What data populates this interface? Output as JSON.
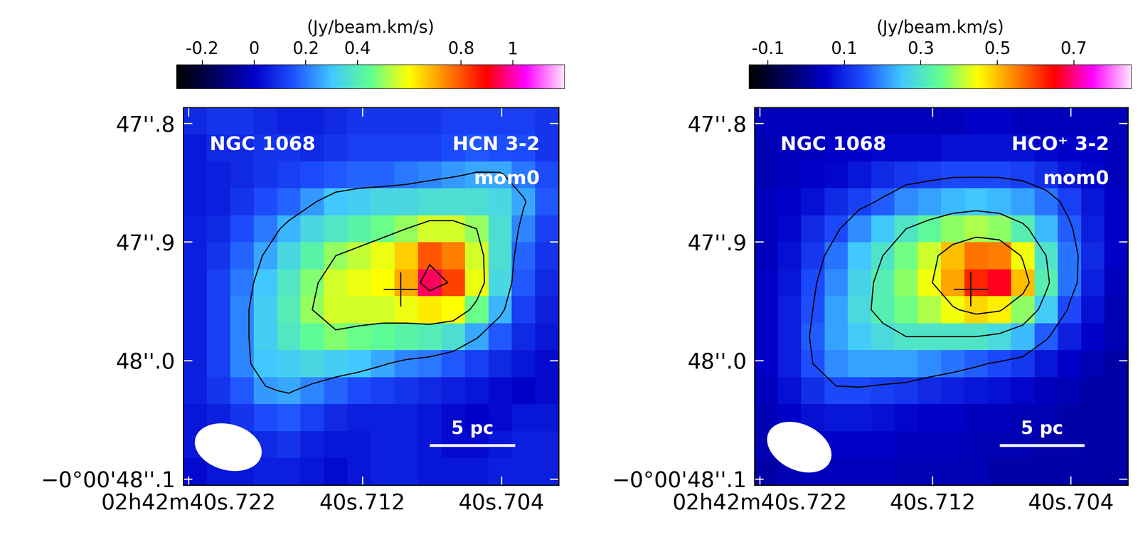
{
  "chart_data": [
    {
      "type": "heatmap",
      "object": "NGC 1068",
      "line": "HCN 3-2",
      "moment": "mom0",
      "scale_bar_label": "5 pc",
      "xlim": [
        40.7223,
        40.7007
      ],
      "ylim": [
        -48.105,
        -47.7865
      ],
      "xticks": [
        {
          "value": 40.722,
          "label": "02h42m40s.722"
        },
        {
          "value": 40.712,
          "label": "40s.712"
        },
        {
          "value": 40.704,
          "label": "40s.704"
        }
      ],
      "yticks": [
        {
          "value": -47.8,
          "label": "47''.8"
        },
        {
          "value": -47.9,
          "label": "47''.9"
        },
        {
          "value": -48.0,
          "label": "48''.0"
        },
        {
          "value": -48.1,
          "label": "−0°00'48''.1"
        }
      ],
      "colorbar": {
        "label": "(Jy/beam.km/s)",
        "range": [
          -0.3,
          1.2
        ],
        "ticks": [
          -0.2,
          0,
          0.2,
          0.4,
          0.8,
          1
        ]
      },
      "contour_levels": [
        0.25,
        0.5,
        0.85
      ],
      "agn_position": [
        40.7098,
        -47.94
      ],
      "cells": [
        [
          0.08,
          0.1,
          0.1,
          0.08,
          0.06,
          0.06,
          0.08,
          0.1,
          0.1,
          0.1,
          0.1,
          0.12,
          0.12,
          0.12,
          0.12,
          0.1
        ],
        [
          0.05,
          0.08,
          0.08,
          0.1,
          0.1,
          0.08,
          0.1,
          0.12,
          0.12,
          0.12,
          0.12,
          0.14,
          0.16,
          0.15,
          0.14,
          0.1
        ],
        [
          0.05,
          0.06,
          0.08,
          0.1,
          0.12,
          0.14,
          0.16,
          0.18,
          0.18,
          0.2,
          0.22,
          0.24,
          0.26,
          0.26,
          0.2,
          0.14
        ],
        [
          0.05,
          0.06,
          0.1,
          0.14,
          0.18,
          0.24,
          0.3,
          0.32,
          0.34,
          0.34,
          0.36,
          0.36,
          0.36,
          0.34,
          0.26,
          0.16
        ],
        [
          0.06,
          0.08,
          0.14,
          0.2,
          0.28,
          0.34,
          0.38,
          0.42,
          0.46,
          0.5,
          0.56,
          0.56,
          0.5,
          0.36,
          0.22,
          0.12
        ],
        [
          0.06,
          0.1,
          0.18,
          0.26,
          0.34,
          0.42,
          0.5,
          0.54,
          0.58,
          0.66,
          0.8,
          0.75,
          0.56,
          0.36,
          0.18,
          0.1
        ],
        [
          0.06,
          0.12,
          0.2,
          0.3,
          0.38,
          0.48,
          0.56,
          0.58,
          0.6,
          0.7,
          0.95,
          0.82,
          0.58,
          0.34,
          0.16,
          0.08
        ],
        [
          0.06,
          0.12,
          0.22,
          0.32,
          0.4,
          0.5,
          0.56,
          0.56,
          0.56,
          0.58,
          0.62,
          0.6,
          0.46,
          0.28,
          0.12,
          0.06
        ],
        [
          0.06,
          0.12,
          0.22,
          0.32,
          0.38,
          0.44,
          0.48,
          0.46,
          0.44,
          0.42,
          0.4,
          0.36,
          0.26,
          0.16,
          0.08,
          0.04
        ],
        [
          0.06,
          0.12,
          0.22,
          0.3,
          0.32,
          0.34,
          0.32,
          0.3,
          0.26,
          0.22,
          0.2,
          0.16,
          0.12,
          0.08,
          0.04,
          0.02
        ],
        [
          0.06,
          0.1,
          0.16,
          0.24,
          0.26,
          0.22,
          0.18,
          0.14,
          0.12,
          0.1,
          0.08,
          0.06,
          0.04,
          0.02,
          0.0,
          0.02
        ],
        [
          0.04,
          0.06,
          0.1,
          0.14,
          0.16,
          0.12,
          0.08,
          0.06,
          0.06,
          0.06,
          0.04,
          0.02,
          0.0,
          0.02,
          0.04,
          0.04
        ],
        [
          0.04,
          0.06,
          0.06,
          0.08,
          0.1,
          0.06,
          0.04,
          0.04,
          0.06,
          0.06,
          0.04,
          0.02,
          0.02,
          0.04,
          0.06,
          0.06
        ],
        [
          0.02,
          0.04,
          0.04,
          0.06,
          0.06,
          0.04,
          0.02,
          0.04,
          0.06,
          0.06,
          0.04,
          0.04,
          0.04,
          0.06,
          0.06,
          0.06
        ]
      ]
    },
    {
      "type": "heatmap",
      "object": "NGC 1068",
      "line": "HCO⁺ 3-2",
      "moment": "mom0",
      "scale_bar_label": "5 pc",
      "xlim": [
        40.7223,
        40.7007
      ],
      "ylim": [
        -48.105,
        -47.7865
      ],
      "xticks": [
        {
          "value": 40.722,
          "label": "02h42m40s.722"
        },
        {
          "value": 40.712,
          "label": "40s.712"
        },
        {
          "value": 40.704,
          "label": "40s.704"
        }
      ],
      "yticks": [
        {
          "value": -47.8,
          "label": "47''.8"
        },
        {
          "value": -47.9,
          "label": "47''.9"
        },
        {
          "value": -48.0,
          "label": "48''.0"
        },
        {
          "value": -48.1,
          "label": "−0°00'48''.1"
        }
      ],
      "colorbar": {
        "label": "(Jy/beam.km/s)",
        "range": [
          -0.15,
          0.85
        ],
        "ticks": [
          -0.1,
          0.1,
          0.3,
          0.5,
          0.7
        ]
      },
      "contour_levels": [
        0.15,
        0.3,
        0.45
      ],
      "agn_position": [
        40.7098,
        -47.94
      ],
      "cells": [
        [
          0.04,
          0.04,
          0.04,
          0.04,
          0.04,
          0.04,
          0.04,
          0.04,
          0.04,
          0.05,
          0.05,
          0.04,
          0.04,
          0.04,
          0.04,
          0.04
        ],
        [
          0.03,
          0.04,
          0.04,
          0.05,
          0.05,
          0.06,
          0.06,
          0.06,
          0.07,
          0.07,
          0.07,
          0.07,
          0.06,
          0.05,
          0.05,
          0.04
        ],
        [
          0.03,
          0.04,
          0.05,
          0.06,
          0.08,
          0.1,
          0.12,
          0.13,
          0.14,
          0.14,
          0.14,
          0.13,
          0.11,
          0.08,
          0.06,
          0.04
        ],
        [
          0.04,
          0.05,
          0.07,
          0.1,
          0.13,
          0.16,
          0.2,
          0.22,
          0.24,
          0.25,
          0.24,
          0.22,
          0.18,
          0.13,
          0.08,
          0.05
        ],
        [
          0.04,
          0.06,
          0.1,
          0.14,
          0.2,
          0.25,
          0.3,
          0.34,
          0.38,
          0.4,
          0.38,
          0.32,
          0.24,
          0.16,
          0.09,
          0.05
        ],
        [
          0.04,
          0.07,
          0.12,
          0.18,
          0.25,
          0.3,
          0.36,
          0.42,
          0.5,
          0.56,
          0.55,
          0.44,
          0.3,
          0.18,
          0.1,
          0.05
        ],
        [
          0.05,
          0.08,
          0.14,
          0.2,
          0.27,
          0.32,
          0.38,
          0.44,
          0.52,
          0.62,
          0.66,
          0.5,
          0.32,
          0.18,
          0.09,
          0.04
        ],
        [
          0.05,
          0.09,
          0.15,
          0.22,
          0.28,
          0.32,
          0.36,
          0.4,
          0.44,
          0.48,
          0.46,
          0.38,
          0.26,
          0.14,
          0.07,
          0.03
        ],
        [
          0.05,
          0.09,
          0.16,
          0.22,
          0.26,
          0.28,
          0.3,
          0.3,
          0.3,
          0.3,
          0.28,
          0.24,
          0.16,
          0.09,
          0.05,
          0.03
        ],
        [
          0.05,
          0.09,
          0.15,
          0.2,
          0.22,
          0.22,
          0.22,
          0.2,
          0.18,
          0.16,
          0.14,
          0.12,
          0.08,
          0.05,
          0.03,
          0.02
        ],
        [
          0.04,
          0.07,
          0.11,
          0.14,
          0.14,
          0.13,
          0.12,
          0.1,
          0.09,
          0.08,
          0.07,
          0.06,
          0.04,
          0.03,
          0.02,
          0.02
        ],
        [
          0.03,
          0.05,
          0.07,
          0.08,
          0.08,
          0.07,
          0.06,
          0.05,
          0.05,
          0.04,
          0.04,
          0.03,
          0.03,
          0.02,
          0.02,
          0.02
        ],
        [
          0.03,
          0.04,
          0.05,
          0.05,
          0.05,
          0.05,
          0.04,
          0.04,
          0.04,
          0.03,
          0.03,
          0.03,
          0.02,
          0.02,
          0.02,
          0.02
        ],
        [
          0.02,
          0.03,
          0.04,
          0.04,
          0.04,
          0.04,
          0.03,
          0.03,
          0.03,
          0.03,
          0.02,
          0.02,
          0.02,
          0.02,
          0.02,
          0.02
        ]
      ]
    }
  ]
}
